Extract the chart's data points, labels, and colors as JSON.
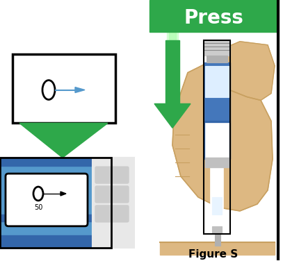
{
  "title": "Press",
  "figure_label": "Figure S",
  "bg_color": "#ffffff",
  "green_banner_color": "#2ea84a",
  "arrow_color": "#2ea84a",
  "blue_device_color": "#5599cc",
  "blue_dark": "#3366aa",
  "border_color": "#111111",
  "skin_color": "#ddb882",
  "skin_outline": "#c8a060",
  "white_color": "#ffffff",
  "gray_color": "#cccccc",
  "gray_dark": "#999999",
  "light_green": "#aaddaa",
  "needle_blue": "#5599cc",
  "black": "#000000"
}
